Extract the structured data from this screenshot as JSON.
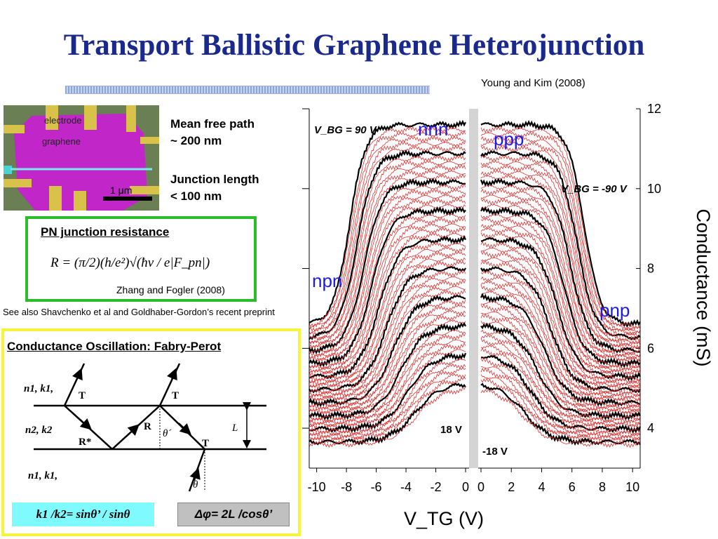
{
  "title": "Transport Ballistic Graphene Heterojunction",
  "citation_young": "Young and Kim (2008)",
  "micrograph": {
    "electrode_label": "electrode",
    "graphene_label": "graphene",
    "scale_bar": "1 μm"
  },
  "mean_free_path": "Mean free path\n~ 200 nm",
  "junction_length": "Junction length\n< 100 nm",
  "pn_box": {
    "title": "PN junction resistance",
    "formula": "R = (π/2)(h/e²)√(ħv / e|F_pn|)",
    "citation": "Zhang and Fogler (2008)"
  },
  "see_also": "See also Shavchenko et al and Goldhaber-Gordon’s recent preprint",
  "fabry_perot": {
    "title": "Conductance Oscillation: Fabry-Perot",
    "region_top": "n1, k1,",
    "region_mid": "n2, k2",
    "region_bot": "n1, k1,",
    "t_label": "T",
    "r_label": "R",
    "rstar_label": "R*",
    "theta_prime": "θ´",
    "theta": "θ",
    "length_label": "L",
    "ratio_formula": "k1 /k2= sinθ’ / sinθ",
    "phase_formula": "Δφ= 2L /cosθ’"
  },
  "chart_data": {
    "type": "line",
    "xlabel": "V_TG (V)",
    "ylabel": "Conductance (mS)",
    "ylim": [
      3,
      12
    ],
    "y_ticks": [
      "4",
      "6",
      "8",
      "10",
      "12"
    ],
    "panels": [
      {
        "name": "left",
        "xlim": [
          -10.5,
          0
        ],
        "x_ticks": [
          "-10",
          "-8",
          "-6",
          "-4",
          "-2",
          "0"
        ],
        "annotations": [
          "V_BG = 90 V",
          "nnn",
          "npn",
          "18 V"
        ]
      },
      {
        "name": "right",
        "xlim": [
          0,
          10.5
        ],
        "x_ticks": [
          "0",
          "2",
          "4",
          "6",
          "8",
          "10"
        ],
        "annotations": [
          "ppp",
          "V_BG = -90 V",
          "pnp",
          "-18 V"
        ]
      }
    ],
    "curve_color": "#e03030",
    "highlight_color": "#000000"
  }
}
